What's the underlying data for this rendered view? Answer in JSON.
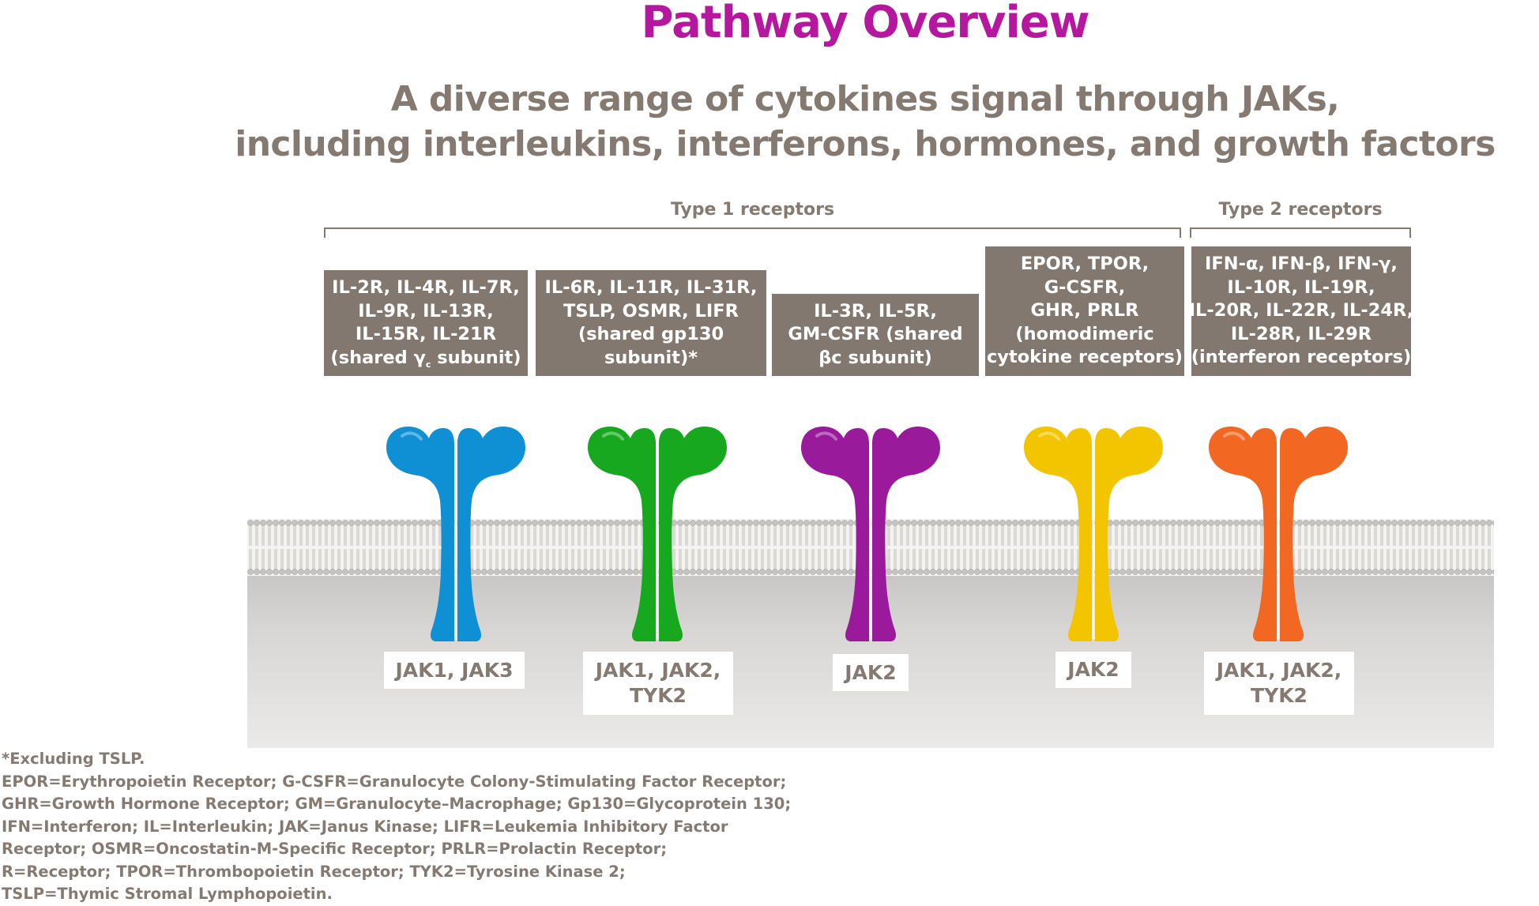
{
  "title": "Pathway Overview",
  "subtitle": [
    "A diverse range of cytokines signal through JAKs,",
    "including interleukins, interferons, hormones, and growth factors"
  ],
  "groups": {
    "type1": "Type 1 receptors",
    "type2": "Type 2 receptors"
  },
  "receptor_groups": [
    {
      "lines": [
        "IL-2R, IL-4R, IL-7R,",
        "IL-9R, IL-13R,",
        "IL-15R, IL-21R"
      ],
      "last_line_pre": "(shared γ",
      "last_line_sub": "c",
      "last_line_post": " subunit)",
      "color": "#0f8fd4",
      "jak": [
        "JAK1, JAK3"
      ]
    },
    {
      "lines": [
        "IL-6R, IL-11R,  IL-31R,",
        "TSLP, OSMR, LIFR",
        "(shared gp130",
        "subunit)*"
      ],
      "color": "#17a81f",
      "jak": [
        "JAK1, JAK2,",
        "TYK2"
      ]
    },
    {
      "lines": [
        "IL-3R, IL-5R,",
        "GM-CSFR (shared",
        "βc subunit)"
      ],
      "color": "#9a1a9c",
      "jak": [
        "JAK2"
      ]
    },
    {
      "lines": [
        "EPOR, TPOR,",
        "G-CSFR,",
        "GHR, PRLR",
        "(homodimeric",
        "cytokine receptors)"
      ],
      "color": "#f2c500",
      "jak": [
        "JAK2"
      ]
    },
    {
      "lines": [
        "IFN-α, IFN-β, IFN-γ,",
        "IL-10R, IL-19R,",
        "IL-20R, IL-22R, IL-24R,",
        "IL-28R, IL-29R",
        "(interferon receptors)"
      ],
      "color": "#f26822",
      "jak": [
        "JAK1, JAK2,",
        "TYK2"
      ]
    }
  ],
  "footnotes": [
    "*Excluding TSLP.",
    "EPOR=Erythropoietin Receptor; G-CSFR=Granulocyte Colony-Stimulating Factor Receptor;",
    "GHR=Growth Hormone Receptor; GM=Granulocyte–Macrophage; Gp130=Glycoprotein 130;",
    "IFN=Interferon; IL=Interleukin; JAK=Janus Kinase; LIFR=Leukemia Inhibitory Factor",
    "Receptor; OSMR=Oncostatin-M-Specific Receptor; PRLR=Prolactin Receptor;",
    "R=Receptor; TPOR=Thrombopoietin Receptor; TYK2=Tyrosine Kinase 2;",
    "TSLP=Thymic Stromal Lymphopoietin."
  ]
}
